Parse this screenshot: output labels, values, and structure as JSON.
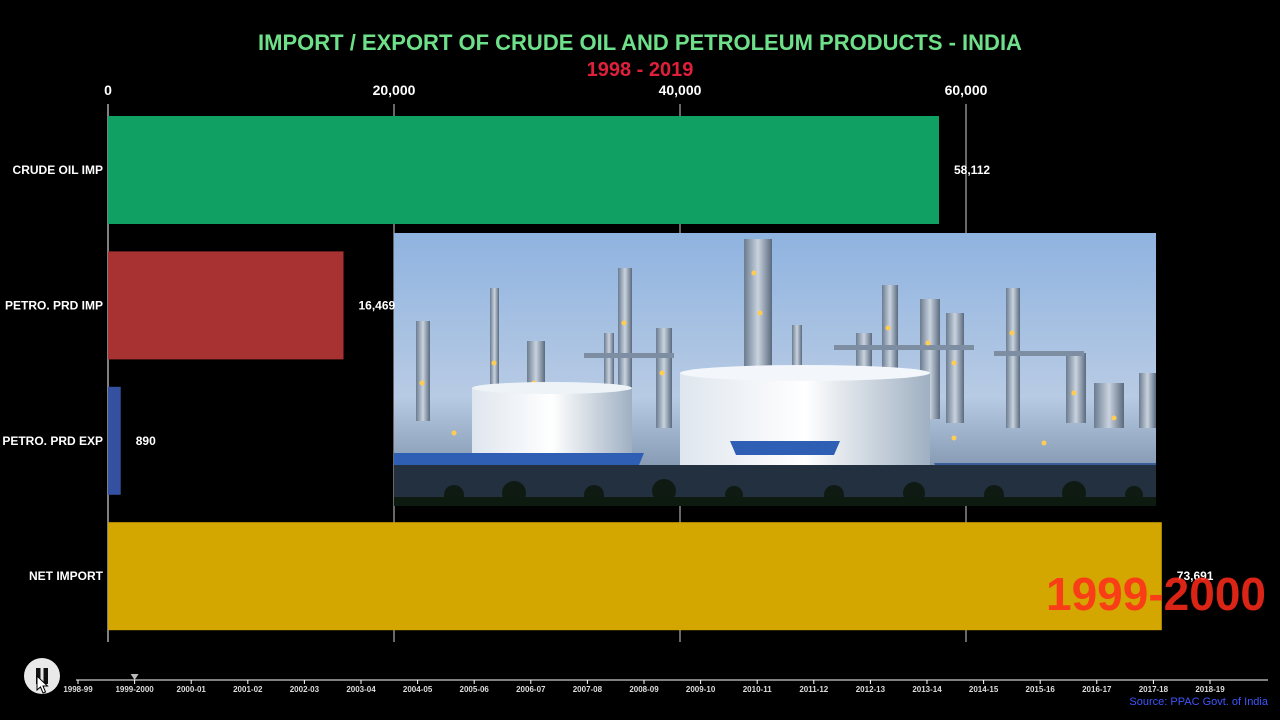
{
  "title": "IMPORT / EXPORT OF CRUDE OIL AND PETROLEUM PRODUCTS - INDIA",
  "subtitle": "1998 - 2019",
  "period_label": "1999-2000",
  "source": "Source: PPAC Govt. of India",
  "colors": {
    "title": "#6ee089",
    "subtitle": "#e0203a",
    "period": "#ff2a1a",
    "source": "#3f56ff",
    "grid": "#cfcfcf",
    "axis": "#ffffff"
  },
  "controls": {
    "play_icon": "pause-icon",
    "selected_period_index": 1
  },
  "timeline": [
    "1998-99",
    "1999-2000",
    "2000-01",
    "2001-02",
    "2002-03",
    "2003-04",
    "2004-05",
    "2005-06",
    "2006-07",
    "2007-08",
    "2008-09",
    "2009-10",
    "2010-11",
    "2011-12",
    "2012-13",
    "2013-14",
    "2014-15",
    "2015-16",
    "2016-17",
    "2017-18",
    "2018-19"
  ],
  "image": {
    "description": "oil-refinery-photo"
  },
  "chart_data": {
    "type": "bar",
    "orientation": "horizontal",
    "categories": [
      "CRUDE OIL IMP",
      "PETRO. PRD IMP",
      "PETRO. PRD EXP",
      "NET IMPORT"
    ],
    "values": [
      58112,
      16469,
      890,
      73691
    ],
    "value_labels": [
      "58,112",
      "16,469",
      "890",
      "73,691"
    ],
    "colors": [
      "#11a064",
      "#a83232",
      "#3450a0",
      "#d4a600"
    ],
    "xticks": [
      0,
      20000,
      40000,
      60000
    ],
    "xtick_labels": [
      "0",
      "20,000",
      "40,000",
      "60,000"
    ],
    "xlim": [
      0,
      80000
    ],
    "grid": true,
    "axis_position": "top"
  }
}
